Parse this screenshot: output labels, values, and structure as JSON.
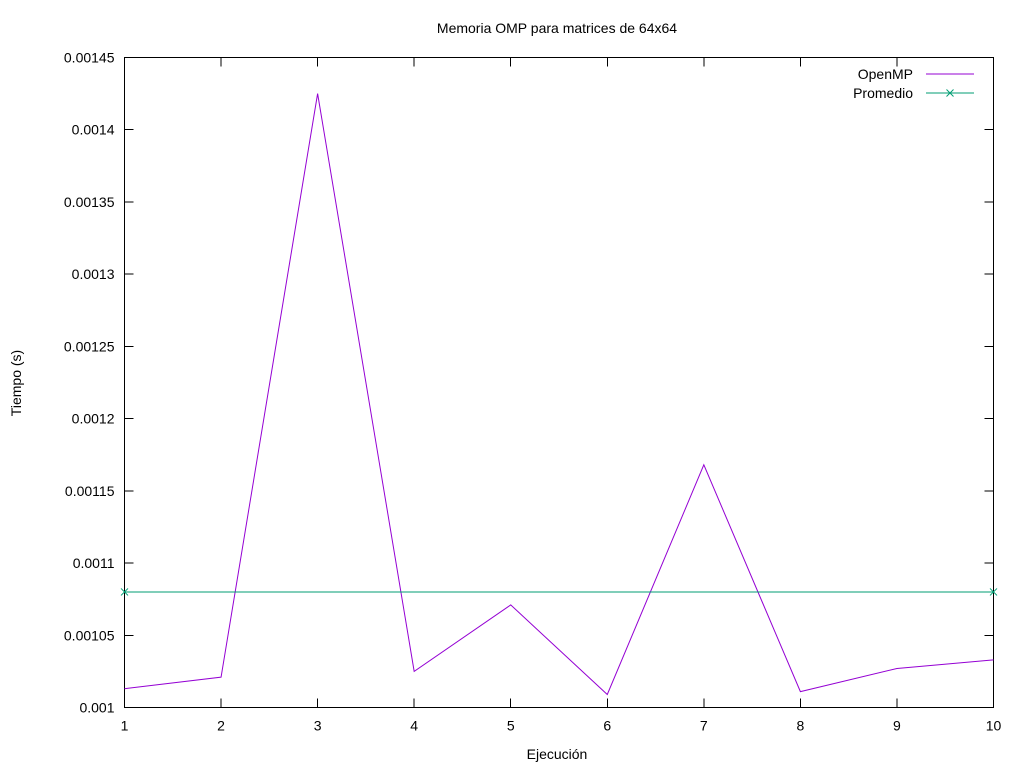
{
  "chart_data": {
    "type": "line",
    "title": "Memoria OMP para matrices de 64x64",
    "xlabel": "Ejecución",
    "ylabel": "Tiempo (s)",
    "xlim": [
      1,
      10
    ],
    "ylim": [
      0.001,
      0.00145
    ],
    "x_ticks": [
      "1",
      "2",
      "3",
      "4",
      "5",
      "6",
      "7",
      "8",
      "9",
      "10"
    ],
    "y_ticks": [
      "0.001",
      "0.00105",
      "0.0011",
      "0.00115",
      "0.0012",
      "0.00125",
      "0.0013",
      "0.00135",
      "0.0014",
      "0.00145"
    ],
    "grid": false,
    "legend_position": "top-right",
    "series": [
      {
        "name": "OpenMP",
        "color": "#9400d3",
        "marker": "none",
        "x": [
          1,
          2,
          3,
          4,
          5,
          6,
          7,
          8,
          9,
          10
        ],
        "values": [
          0.001013,
          0.001021,
          0.001425,
          0.001025,
          0.001071,
          0.001009,
          0.001168,
          0.001011,
          0.001027,
          0.001033
        ]
      },
      {
        "name": "Promedio",
        "color": "#009e73",
        "marker": "x",
        "x": [
          1,
          10
        ],
        "values": [
          0.00108,
          0.00108
        ]
      }
    ]
  }
}
